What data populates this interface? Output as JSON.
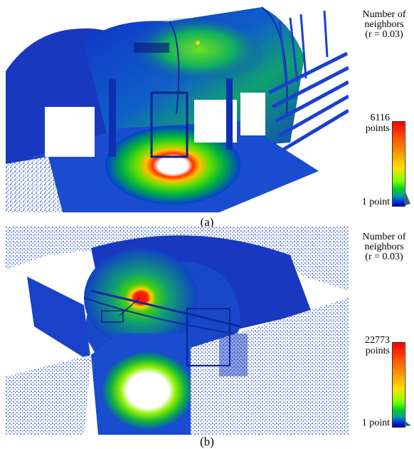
{
  "panels": [
    {
      "id": "a",
      "caption": "(a)",
      "legend": {
        "title_lines": [
          "Number of",
          "neighbors",
          "(r = 0.03)"
        ],
        "max_value": "6116",
        "max_unit": "points",
        "min_label": "1 point"
      }
    },
    {
      "id": "b",
      "caption": "(b)",
      "legend": {
        "title_lines": [
          "Number of",
          "neighbors",
          "(r = 0.03)"
        ],
        "max_value": "22773",
        "max_unit": "points",
        "min_label": "1 point"
      }
    }
  ],
  "colors": {
    "low": "#0000c0",
    "mid": "#00d020",
    "high": "#ff0000",
    "background": "#ffffff"
  }
}
